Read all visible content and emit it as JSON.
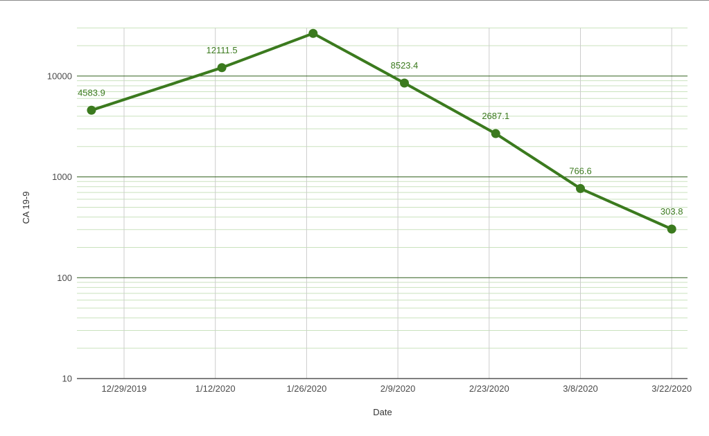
{
  "chart_data": {
    "type": "line",
    "title": "",
    "xlabel": "Date",
    "ylabel": "CA 19-9",
    "y_scale": "log",
    "ylim": [
      10,
      30000
    ],
    "x_ticks": [
      "12/29/2019",
      "1/12/2020",
      "1/26/2020",
      "2/9/2020",
      "2/23/2020",
      "3/8/2020",
      "3/22/2020"
    ],
    "y_ticks": [
      10,
      100,
      1000,
      10000
    ],
    "y_tick_labels": [
      "10",
      "100",
      "1000",
      "10000"
    ],
    "grid": true,
    "colors": {
      "series": "#3b7a1e",
      "major_grid": "#2f5f1a",
      "minor_grid": "#c9e2bd",
      "vertical_grid": "#cccccc",
      "axis": "#333333"
    },
    "series": [
      {
        "points": [
          {
            "x": "2019-12-24",
            "y": 4583.9,
            "label": "4583.9"
          },
          {
            "x": "2020-01-13",
            "y": 12111.5,
            "label": "12111.5"
          },
          {
            "x": "2020-01-27",
            "y": 26500,
            "label": ""
          },
          {
            "x": "2020-02-10",
            "y": 8523.4,
            "label": "8523.4"
          },
          {
            "x": "2020-02-24",
            "y": 2687.1,
            "label": "2687.1"
          },
          {
            "x": "2020-03-08",
            "y": 766.6,
            "label": "766.6"
          },
          {
            "x": "2020-03-22",
            "y": 303.8,
            "label": "303.8"
          }
        ]
      }
    ]
  }
}
